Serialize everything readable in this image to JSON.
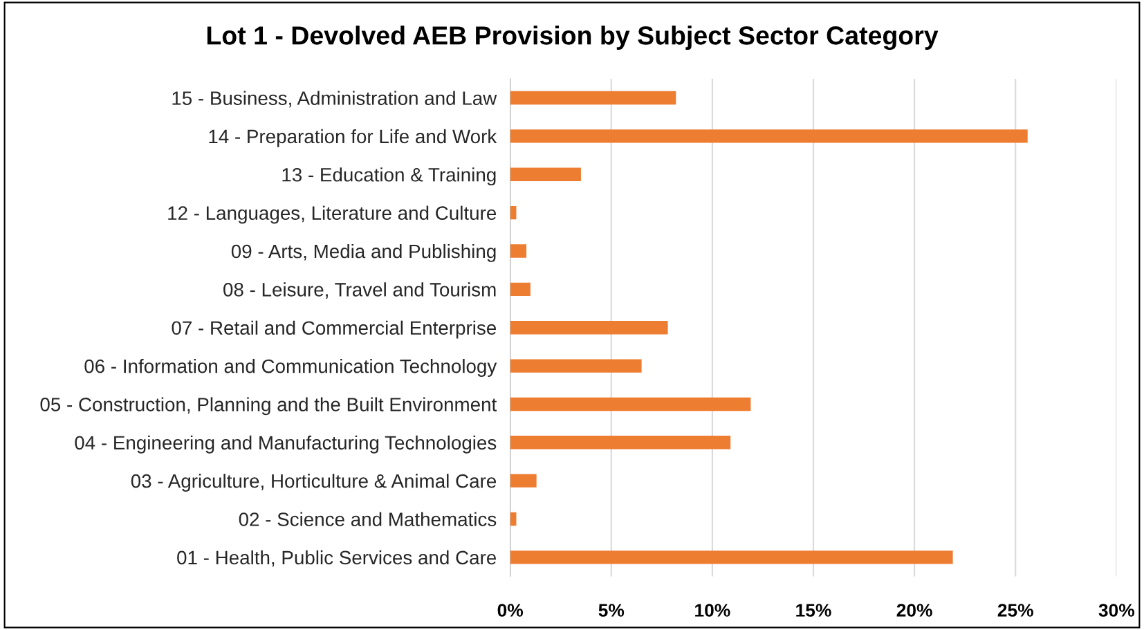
{
  "chart_data": {
    "type": "bar",
    "orientation": "horizontal",
    "title": "Lot 1 - Devolved AEB Provision by Subject Sector Category",
    "categories": [
      "15 - Business, Administration and Law",
      "14 - Preparation for Life and Work",
      "13 - Education & Training",
      "12 - Languages, Literature and Culture",
      "09 - Arts, Media and Publishing",
      "08 - Leisure, Travel and Tourism",
      "07 - Retail and Commercial Enterprise",
      "06 - Information and Communication Technology",
      "05 - Construction, Planning and the Built Environment",
      "04 - Engineering and Manufacturing Technologies",
      "03 - Agriculture, Horticulture & Animal Care",
      "02 - Science and Mathematics",
      "01 - Health, Public Services and Care"
    ],
    "values": [
      8.2,
      25.6,
      3.5,
      0.3,
      0.8,
      1.0,
      7.8,
      6.5,
      11.9,
      10.9,
      1.3,
      0.3,
      21.9
    ],
    "color": "#ed7d31",
    "xlim": [
      0,
      30
    ],
    "xticks": [
      {
        "value": 0,
        "label": "0%"
      },
      {
        "value": 5,
        "label": "5%"
      },
      {
        "value": 10,
        "label": "10%"
      },
      {
        "value": 15,
        "label": "15%"
      },
      {
        "value": 20,
        "label": "20%"
      },
      {
        "value": 25,
        "label": "25%"
      },
      {
        "value": 30,
        "label": "30%"
      }
    ],
    "grid": "x"
  }
}
